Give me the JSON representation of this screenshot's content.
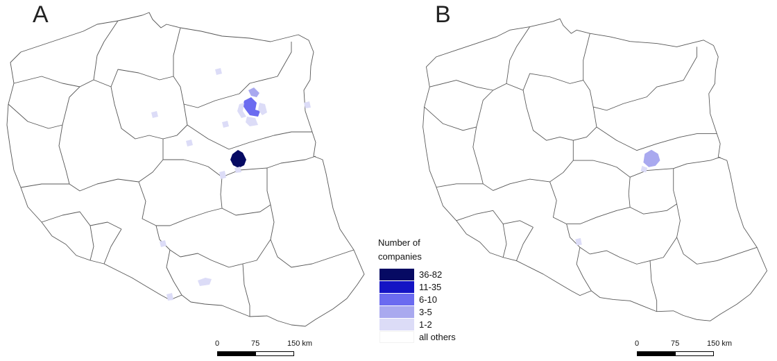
{
  "panels": [
    {
      "label": "A"
    },
    {
      "label": "B"
    }
  ],
  "legend": {
    "title_line1": "Number of",
    "title_line2": "companies",
    "entries": [
      {
        "label": "36-82",
        "color": "#060a63"
      },
      {
        "label": "11-35",
        "color": "#1414c4"
      },
      {
        "label": "6-10",
        "color": "#6b6bf0"
      },
      {
        "label": "3-5",
        "color": "#a9a9ef"
      },
      {
        "label": "1-2",
        "color": "#dcdcf7"
      },
      {
        "label": "all others",
        "color": "#ffffff"
      }
    ]
  },
  "scale_bar": {
    "ticks": [
      "0",
      "75",
      "150 km"
    ]
  }
}
